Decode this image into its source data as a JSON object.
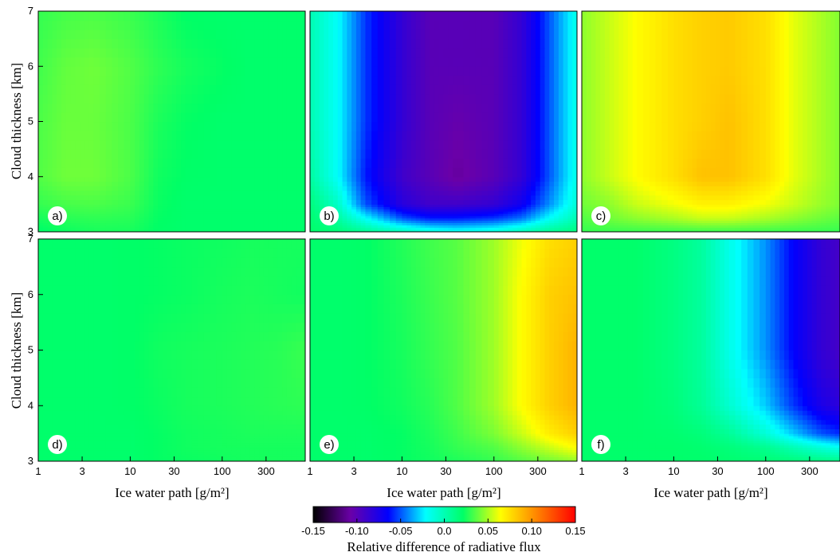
{
  "chart_data": {
    "type": "heatmap",
    "layout": {
      "rows": 2,
      "cols": 3,
      "shared_colorbar": true
    },
    "x": {
      "label": "Ice water path [g/m²]",
      "scale": "log",
      "ticks": [
        1,
        3,
        10,
        30,
        100,
        300
      ],
      "tick_labels": [
        "1",
        "3",
        "10",
        "30",
        "100",
        "300"
      ],
      "range": [
        1,
        800
      ]
    },
    "y": {
      "label": "Cloud thickness [km]",
      "ticks": [
        3,
        4,
        5,
        6,
        7
      ],
      "tick_labels": [
        "3",
        "4",
        "5",
        "6",
        "7"
      ],
      "range": [
        3,
        7
      ]
    },
    "colorbar": {
      "label": "Relative difference of radiative flux",
      "range": [
        -0.15,
        0.15
      ],
      "ticks": [
        -0.15,
        -0.1,
        -0.05,
        0.0,
        0.05,
        0.1,
        0.15
      ],
      "tick_labels": [
        "-0.15",
        "-0.10",
        "-0.05",
        "0.0",
        "0.05",
        "0.10",
        "0.15"
      ],
      "colormap": [
        "#000000",
        "#6a00a8",
        "#0000ff",
        "#00ffff",
        "#00ff66",
        "#ffff00",
        "#ff8000",
        "#ff0000"
      ]
    },
    "grid_x": [
      1,
      2,
      4,
      10,
      20,
      40,
      100,
      200,
      400,
      800
    ],
    "grid_y": [
      3,
      3.25,
      3.5,
      4,
      5,
      6,
      7
    ],
    "panels": [
      {
        "label": "a)",
        "values": [
          [
            0.02,
            0.023,
            0.025,
            0.025,
            0.021,
            0.02,
            0.02,
            0.02,
            0.02,
            0.02
          ],
          [
            0.025,
            0.028,
            0.029,
            0.028,
            0.022,
            0.02,
            0.02,
            0.02,
            0.02,
            0.02
          ],
          [
            0.03,
            0.033,
            0.034,
            0.031,
            0.023,
            0.02,
            0.02,
            0.02,
            0.02,
            0.02
          ],
          [
            0.035,
            0.04,
            0.04,
            0.034,
            0.024,
            0.021,
            0.02,
            0.02,
            0.02,
            0.02
          ],
          [
            0.034,
            0.039,
            0.039,
            0.034,
            0.026,
            0.022,
            0.02,
            0.02,
            0.02,
            0.02
          ],
          [
            0.032,
            0.038,
            0.04,
            0.035,
            0.029,
            0.025,
            0.022,
            0.02,
            0.02,
            0.02
          ],
          [
            0.03,
            0.033,
            0.034,
            0.031,
            0.026,
            0.021,
            0.02,
            0.02,
            0.02,
            0.02
          ]
        ]
      },
      {
        "label": "b)",
        "values": [
          [
            0.02,
            0.017,
            0.01,
            0.0,
            -0.01,
            -0.015,
            -0.01,
            0.0,
            0.01,
            0.015
          ],
          [
            0.018,
            0.005,
            -0.02,
            -0.05,
            -0.06,
            -0.06,
            -0.055,
            -0.045,
            -0.02,
            0.0
          ],
          [
            0.015,
            -0.005,
            -0.05,
            -0.08,
            -0.09,
            -0.09,
            -0.085,
            -0.07,
            -0.04,
            -0.01
          ],
          [
            0.005,
            -0.02,
            -0.06,
            -0.09,
            -0.1,
            -0.11,
            -0.1,
            -0.085,
            -0.05,
            -0.015
          ],
          [
            0.0,
            -0.02,
            -0.055,
            -0.085,
            -0.1,
            -0.105,
            -0.1,
            -0.085,
            -0.05,
            -0.015
          ],
          [
            0.0,
            -0.02,
            -0.055,
            -0.085,
            -0.1,
            -0.1,
            -0.1,
            -0.085,
            -0.05,
            -0.015
          ],
          [
            0.0,
            -0.02,
            -0.055,
            -0.085,
            -0.1,
            -0.1,
            -0.1,
            -0.085,
            -0.05,
            -0.015
          ]
        ]
      },
      {
        "label": "c)",
        "values": [
          [
            0.03,
            0.03,
            0.03,
            0.03,
            0.03,
            0.03,
            0.03,
            0.03,
            0.03,
            0.03
          ],
          [
            0.035,
            0.04,
            0.045,
            0.05,
            0.055,
            0.055,
            0.05,
            0.045,
            0.04,
            0.035
          ],
          [
            0.04,
            0.045,
            0.055,
            0.062,
            0.068,
            0.068,
            0.062,
            0.055,
            0.047,
            0.04
          ],
          [
            0.045,
            0.055,
            0.065,
            0.075,
            0.085,
            0.085,
            0.075,
            0.06,
            0.05,
            0.04
          ],
          [
            0.045,
            0.055,
            0.065,
            0.075,
            0.08,
            0.085,
            0.075,
            0.06,
            0.05,
            0.04
          ],
          [
            0.045,
            0.055,
            0.065,
            0.075,
            0.08,
            0.082,
            0.075,
            0.06,
            0.05,
            0.04
          ],
          [
            0.045,
            0.055,
            0.065,
            0.075,
            0.08,
            0.082,
            0.075,
            0.06,
            0.05,
            0.04
          ]
        ]
      },
      {
        "label": "d)",
        "values": [
          [
            0.02,
            0.02,
            0.02,
            0.02,
            0.022,
            0.023,
            0.024,
            0.025,
            0.025,
            0.025
          ],
          [
            0.02,
            0.02,
            0.02,
            0.02,
            0.022,
            0.024,
            0.025,
            0.025,
            0.025,
            0.025
          ],
          [
            0.02,
            0.02,
            0.02,
            0.02,
            0.022,
            0.024,
            0.025,
            0.026,
            0.026,
            0.026
          ],
          [
            0.02,
            0.02,
            0.02,
            0.021,
            0.023,
            0.025,
            0.026,
            0.027,
            0.028,
            0.029
          ],
          [
            0.02,
            0.02,
            0.02,
            0.021,
            0.024,
            0.025,
            0.026,
            0.027,
            0.028,
            0.031
          ],
          [
            0.02,
            0.02,
            0.02,
            0.021,
            0.022,
            0.023,
            0.025,
            0.026,
            0.025,
            0.024
          ],
          [
            0.02,
            0.02,
            0.02,
            0.021,
            0.022,
            0.023,
            0.024,
            0.025,
            0.025,
            0.025
          ]
        ]
      },
      {
        "label": "e)",
        "values": [
          [
            0.02,
            0.02,
            0.02,
            0.022,
            0.024,
            0.026,
            0.03,
            0.035,
            0.04,
            0.045
          ],
          [
            0.02,
            0.02,
            0.02,
            0.022,
            0.025,
            0.03,
            0.035,
            0.045,
            0.055,
            0.065
          ],
          [
            0.02,
            0.02,
            0.02,
            0.022,
            0.026,
            0.032,
            0.042,
            0.055,
            0.07,
            0.08
          ],
          [
            0.02,
            0.02,
            0.021,
            0.024,
            0.028,
            0.035,
            0.048,
            0.065,
            0.08,
            0.09
          ],
          [
            0.02,
            0.02,
            0.021,
            0.025,
            0.03,
            0.035,
            0.048,
            0.065,
            0.08,
            0.09
          ],
          [
            0.02,
            0.02,
            0.021,
            0.026,
            0.031,
            0.036,
            0.048,
            0.065,
            0.08,
            0.085
          ],
          [
            0.02,
            0.02,
            0.021,
            0.027,
            0.032,
            0.036,
            0.048,
            0.062,
            0.075,
            0.08
          ]
        ]
      },
      {
        "label": "f)",
        "values": [
          [
            0.02,
            0.02,
            0.02,
            0.02,
            0.02,
            0.019,
            0.018,
            0.016,
            0.014,
            0.012
          ],
          [
            0.02,
            0.02,
            0.02,
            0.02,
            0.019,
            0.016,
            0.01,
            0.0,
            -0.01,
            -0.02
          ],
          [
            0.02,
            0.02,
            0.02,
            0.019,
            0.016,
            0.008,
            -0.01,
            -0.03,
            -0.05,
            -0.06
          ],
          [
            0.02,
            0.02,
            0.02,
            0.016,
            0.008,
            -0.008,
            -0.03,
            -0.055,
            -0.075,
            -0.085
          ],
          [
            0.02,
            0.02,
            0.02,
            0.014,
            0.006,
            -0.015,
            -0.04,
            -0.065,
            -0.085,
            -0.095
          ],
          [
            0.02,
            0.02,
            0.02,
            0.014,
            0.006,
            -0.015,
            -0.04,
            -0.065,
            -0.085,
            -0.095
          ],
          [
            0.02,
            0.02,
            0.02,
            0.014,
            0.006,
            -0.015,
            -0.04,
            -0.065,
            -0.085,
            -0.095
          ]
        ]
      }
    ]
  }
}
